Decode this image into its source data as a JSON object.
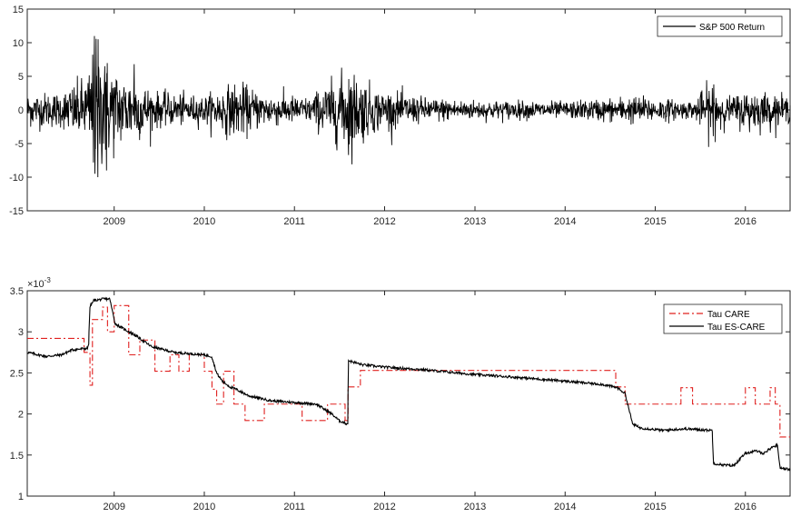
{
  "chart_data": [
    {
      "type": "line",
      "title": "",
      "xlabel": "",
      "ylabel": "",
      "x_ticks": [
        "2009",
        "2010",
        "2011",
        "2012",
        "2013",
        "2014",
        "2015",
        "2016"
      ],
      "x_range": [
        "2008-01-15",
        "2016-06-30"
      ],
      "ylim": [
        -15,
        15
      ],
      "y_ticks": [
        "-15",
        "-10",
        "-5",
        "0",
        "5",
        "10",
        "15"
      ],
      "legend_position": "top-right",
      "series": [
        {
          "name": "S&P 500 Return",
          "color": "#000000",
          "style": "solid",
          "volatility_profile": {
            "x": [
              "2008-01-15",
              "2008-06-01",
              "2008-09-15",
              "2008-10-15",
              "2008-11-20",
              "2009-01-15",
              "2009-04-01",
              "2009-07-01",
              "2010-01-01",
              "2010-05-10",
              "2010-09-01",
              "2011-03-01",
              "2011-08-10",
              "2011-12-01",
              "2012-06-01",
              "2013-01-01",
              "2014-01-01",
              "2014-10-15",
              "2015-06-01",
              "2015-08-24",
              "2015-10-15",
              "2016-01-20",
              "2016-06-30"
            ],
            "sd": [
              1.2,
              1.3,
              2.5,
              5.0,
              4.0,
              2.8,
              2.2,
              1.2,
              1.0,
              2.0,
              1.2,
              0.9,
              3.0,
              1.5,
              0.9,
              0.7,
              0.6,
              1.0,
              0.6,
              2.2,
              0.9,
              1.5,
              0.9
            ]
          },
          "extremes": [
            {
              "x": "2008-10-13",
              "y": 11.0
            },
            {
              "x": "2008-10-15",
              "y": -9.5
            },
            {
              "x": "2008-10-28",
              "y": 10.5
            },
            {
              "x": "2008-10-27",
              "y": -10.0
            },
            {
              "x": "2008-12-01",
              "y": -9.0
            },
            {
              "x": "2008-11-24",
              "y": 6.5
            },
            {
              "x": "2009-03-23",
              "y": 6.8
            },
            {
              "x": "2011-08-08",
              "y": -6.7
            },
            {
              "x": "2011-08-09",
              "y": 4.6
            },
            {
              "x": "2015-08-24",
              "y": -3.9
            },
            {
              "x": "2015-08-26",
              "y": 3.8
            }
          ]
        }
      ]
    },
    {
      "type": "line",
      "title": "",
      "xlabel": "",
      "ylabel": "",
      "y_multiplier_base": "×10",
      "y_multiplier_exp": "-3",
      "x_ticks": [
        "2009",
        "2010",
        "2011",
        "2012",
        "2013",
        "2014",
        "2015",
        "2016"
      ],
      "x_range": [
        "2008-01-15",
        "2016-06-30"
      ],
      "ylim": [
        1,
        3.5
      ],
      "y_ticks": [
        "1",
        "1.5",
        "2",
        "2.5",
        "3",
        "3.5"
      ],
      "legend_position": "top-right",
      "series": [
        {
          "name": "Tau CARE",
          "color": "#e0201f",
          "style": "dash-dot",
          "points": [
            [
              "2008-01-15",
              2.92
            ],
            [
              "2008-09-01",
              2.92
            ],
            [
              "2008-09-01",
              2.75
            ],
            [
              "2008-09-25",
              2.75
            ],
            [
              "2008-09-25",
              2.35
            ],
            [
              "2008-10-05",
              2.35
            ],
            [
              "2008-10-05",
              3.15
            ],
            [
              "2008-11-15",
              3.15
            ],
            [
              "2008-11-15",
              3.3
            ],
            [
              "2008-12-05",
              3.3
            ],
            [
              "2008-12-05",
              3.0
            ],
            [
              "2009-01-01",
              3.0
            ],
            [
              "2009-01-01",
              3.32
            ],
            [
              "2009-03-01",
              3.32
            ],
            [
              "2009-03-01",
              2.72
            ],
            [
              "2009-04-15",
              2.72
            ],
            [
              "2009-04-15",
              2.9
            ],
            [
              "2009-06-15",
              2.9
            ],
            [
              "2009-06-15",
              2.52
            ],
            [
              "2009-08-15",
              2.52
            ],
            [
              "2009-08-15",
              2.72
            ],
            [
              "2009-09-20",
              2.72
            ],
            [
              "2009-09-20",
              2.52
            ],
            [
              "2009-11-01",
              2.52
            ],
            [
              "2009-11-01",
              2.72
            ],
            [
              "2010-01-01",
              2.72
            ],
            [
              "2010-01-01",
              2.52
            ],
            [
              "2010-02-01",
              2.52
            ],
            [
              "2010-02-01",
              2.3
            ],
            [
              "2010-02-20",
              2.3
            ],
            [
              "2010-02-20",
              2.12
            ],
            [
              "2010-03-20",
              2.12
            ],
            [
              "2010-03-20",
              2.52
            ],
            [
              "2010-05-01",
              2.52
            ],
            [
              "2010-05-01",
              2.12
            ],
            [
              "2010-06-15",
              2.12
            ],
            [
              "2010-06-15",
              1.92
            ],
            [
              "2010-09-01",
              1.92
            ],
            [
              "2010-09-01",
              2.12
            ],
            [
              "2011-02-01",
              2.12
            ],
            [
              "2011-02-01",
              1.92
            ],
            [
              "2011-05-15",
              1.92
            ],
            [
              "2011-05-15",
              2.12
            ],
            [
              "2011-07-25",
              2.12
            ],
            [
              "2011-07-25",
              1.92
            ],
            [
              "2011-08-06",
              1.92
            ],
            [
              "2011-08-06",
              2.33
            ],
            [
              "2011-09-25",
              2.33
            ],
            [
              "2011-09-25",
              2.53
            ],
            [
              "2014-07-25",
              2.53
            ],
            [
              "2014-07-25",
              2.33
            ],
            [
              "2014-09-01",
              2.33
            ],
            [
              "2014-09-01",
              2.12
            ],
            [
              "2015-04-15",
              2.12
            ],
            [
              "2015-04-15",
              2.32
            ],
            [
              "2015-06-01",
              2.32
            ],
            [
              "2015-06-01",
              2.12
            ],
            [
              "2016-01-01",
              2.12
            ],
            [
              "2016-01-01",
              2.32
            ],
            [
              "2016-02-10",
              2.32
            ],
            [
              "2016-02-10",
              2.12
            ],
            [
              "2016-04-10",
              2.12
            ],
            [
              "2016-04-10",
              2.32
            ],
            [
              "2016-05-01",
              2.32
            ],
            [
              "2016-05-01",
              2.12
            ],
            [
              "2016-05-20",
              2.12
            ],
            [
              "2016-05-20",
              1.72
            ],
            [
              "2016-06-30",
              1.72
            ]
          ]
        },
        {
          "name": "Tau ES-CARE",
          "color": "#000000",
          "style": "solid",
          "points": [
            [
              "2008-01-15",
              2.75
            ],
            [
              "2008-03-01",
              2.72
            ],
            [
              "2008-04-01",
              2.7
            ],
            [
              "2008-06-01",
              2.72
            ],
            [
              "2008-07-15",
              2.78
            ],
            [
              "2008-09-15",
              2.8
            ],
            [
              "2008-09-20",
              2.85
            ],
            [
              "2008-09-25",
              3.3
            ],
            [
              "2008-10-10",
              3.38
            ],
            [
              "2008-11-20",
              3.4
            ],
            [
              "2008-12-15",
              3.4
            ],
            [
              "2009-01-05",
              3.1
            ],
            [
              "2009-02-01",
              3.05
            ],
            [
              "2009-04-01",
              2.95
            ],
            [
              "2009-06-01",
              2.82
            ],
            [
              "2009-09-01",
              2.75
            ],
            [
              "2009-12-31",
              2.72
            ],
            [
              "2010-01-31",
              2.7
            ],
            [
              "2010-02-20",
              2.5
            ],
            [
              "2010-03-15",
              2.4
            ],
            [
              "2010-04-15",
              2.33
            ],
            [
              "2010-05-10",
              2.3
            ],
            [
              "2010-07-01",
              2.22
            ],
            [
              "2010-10-01",
              2.16
            ],
            [
              "2011-01-01",
              2.14
            ],
            [
              "2011-04-01",
              2.12
            ],
            [
              "2011-06-01",
              2.0
            ],
            [
              "2011-07-01",
              1.92
            ],
            [
              "2011-08-01",
              1.88
            ],
            [
              "2011-08-05",
              1.88
            ],
            [
              "2011-08-08",
              2.65
            ],
            [
              "2011-10-01",
              2.6
            ],
            [
              "2012-01-01",
              2.57
            ],
            [
              "2012-06-01",
              2.54
            ],
            [
              "2013-01-01",
              2.48
            ],
            [
              "2013-06-01",
              2.45
            ],
            [
              "2014-01-01",
              2.4
            ],
            [
              "2014-06-01",
              2.36
            ],
            [
              "2014-08-01",
              2.32
            ],
            [
              "2014-09-01",
              2.25
            ],
            [
              "2014-10-01",
              1.88
            ],
            [
              "2014-11-01",
              1.83
            ],
            [
              "2015-02-01",
              1.8
            ],
            [
              "2015-05-01",
              1.82
            ],
            [
              "2015-08-20",
              1.8
            ],
            [
              "2015-08-25",
              1.4
            ],
            [
              "2015-10-01",
              1.38
            ],
            [
              "2015-11-15",
              1.37
            ],
            [
              "2016-01-01",
              1.52
            ],
            [
              "2016-02-15",
              1.55
            ],
            [
              "2016-03-15",
              1.52
            ],
            [
              "2016-04-20",
              1.6
            ],
            [
              "2016-05-10",
              1.62
            ],
            [
              "2016-05-20",
              1.35
            ],
            [
              "2016-06-30",
              1.32
            ]
          ]
        }
      ]
    }
  ]
}
